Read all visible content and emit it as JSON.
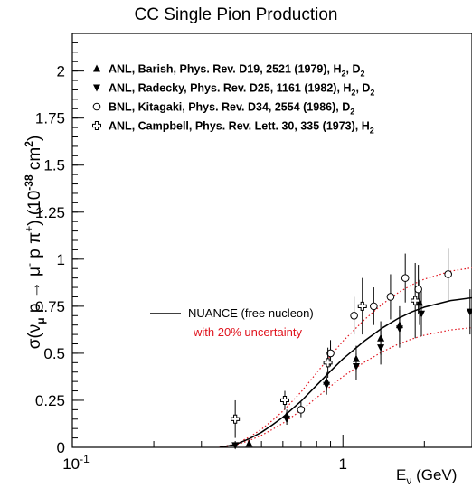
{
  "chart_data": {
    "type": "scatter",
    "title": "CC Single Pion Production",
    "xlabel": {
      "main": "E",
      "sub": "ν",
      "unit": " (GeV)"
    },
    "ylabel": {
      "pre": "σ(ν",
      "nusub": "μ",
      "mid": " p  ",
      "arrow": "→",
      "post": "  μ",
      "musup": "-",
      "post2": " p π",
      "pisup": "+",
      "post3": ") (10",
      "expsup": "-38",
      "unit": " cm",
      "unitsup": "2",
      "close": ")"
    },
    "x_scale": "log",
    "xlim": [
      0.1,
      3.0
    ],
    "ylim": [
      0,
      2.2
    ],
    "x_ticks": [
      {
        "value": 0.1,
        "base": "10",
        "exp": "-1"
      },
      {
        "value": 1,
        "label": "1"
      }
    ],
    "y_ticks": [
      {
        "value": 0,
        "label": "0"
      },
      {
        "value": 0.25,
        "label": "0.25"
      },
      {
        "value": 0.5,
        "label": "0.5"
      },
      {
        "value": 0.75,
        "label": "0.75"
      },
      {
        "value": 1,
        "label": "1"
      },
      {
        "value": 1.25,
        "label": "1.25"
      },
      {
        "value": 1.5,
        "label": "1.5"
      },
      {
        "value": 1.75,
        "label": "1.75"
      },
      {
        "value": 2,
        "label": "2"
      }
    ],
    "series": [
      {
        "name": "ANL, Barish, Phys. Rev. D19, 2521 (1979), H",
        "sub1": "2",
        "sep": ", D",
        "sub2": "2",
        "marker": "triangle-up",
        "points": [
          {
            "x": 0.45,
            "y": 0.02,
            "err": 0.01
          },
          {
            "x": 0.62,
            "y": 0.17,
            "err": 0.03
          },
          {
            "x": 0.87,
            "y": 0.35,
            "err": 0.05
          },
          {
            "x": 1.12,
            "y": 0.47,
            "err": 0.07
          },
          {
            "x": 1.38,
            "y": 0.58,
            "err": 0.09
          },
          {
            "x": 1.62,
            "y": 0.65,
            "err": 0.1
          },
          {
            "x": 1.92,
            "y": 0.77,
            "err": 0.12
          }
        ]
      },
      {
        "name": "ANL, Radecky, Phys. Rev. D25, 1161 (1982), H",
        "sub1": "2",
        "sep": ", D",
        "sub2": "2",
        "marker": "triangle-down",
        "points": [
          {
            "x": 0.4,
            "y": 0.01,
            "err": 0.01
          },
          {
            "x": 0.62,
            "y": 0.15,
            "err": 0.03
          },
          {
            "x": 0.87,
            "y": 0.33,
            "err": 0.05
          },
          {
            "x": 1.12,
            "y": 0.43,
            "err": 0.07
          },
          {
            "x": 1.38,
            "y": 0.53,
            "err": 0.09
          },
          {
            "x": 1.62,
            "y": 0.63,
            "err": 0.1
          },
          {
            "x": 1.95,
            "y": 0.71,
            "err": 0.12
          },
          {
            "x": 2.95,
            "y": 0.72,
            "err": 0.12
          }
        ]
      },
      {
        "name": "BNL, Kitagaki, Phys. Rev. D34, 2554 (1986), D",
        "sub1": "2",
        "marker": "circle-open",
        "points": [
          {
            "x": 0.7,
            "y": 0.2,
            "err": 0.04
          },
          {
            "x": 0.9,
            "y": 0.5,
            "err": 0.07
          },
          {
            "x": 1.1,
            "y": 0.7,
            "err": 0.1
          },
          {
            "x": 1.3,
            "y": 0.75,
            "err": 0.1
          },
          {
            "x": 1.5,
            "y": 0.8,
            "err": 0.12
          },
          {
            "x": 1.7,
            "y": 0.9,
            "err": 0.13
          },
          {
            "x": 1.9,
            "y": 0.84,
            "err": 0.13
          },
          {
            "x": 2.45,
            "y": 0.92,
            "err": 0.14
          }
        ]
      },
      {
        "name": "ANL, Campbell, Phys. Rev. Lett. 30, 335 (1973), H",
        "sub1": "2",
        "marker": "cross-open",
        "points": [
          {
            "x": 0.4,
            "y": 0.15,
            "err": 0.1
          },
          {
            "x": 0.61,
            "y": 0.25,
            "err": 0.05
          },
          {
            "x": 0.88,
            "y": 0.45,
            "err": 0.08
          },
          {
            "x": 1.18,
            "y": 0.75,
            "err": 0.15
          },
          {
            "x": 1.85,
            "y": 0.78,
            "err": 0.2
          }
        ]
      }
    ],
    "model": {
      "label": "NUANCE (free nucleon)",
      "band_label": "with 20% uncertainty",
      "band_fraction": 0.2,
      "curve": [
        {
          "x": 0.35,
          "y": 0.0
        },
        {
          "x": 0.4,
          "y": 0.015
        },
        {
          "x": 0.45,
          "y": 0.045
        },
        {
          "x": 0.5,
          "y": 0.08
        },
        {
          "x": 0.55,
          "y": 0.12
        },
        {
          "x": 0.6,
          "y": 0.16
        },
        {
          "x": 0.7,
          "y": 0.245
        },
        {
          "x": 0.8,
          "y": 0.33
        },
        {
          "x": 0.9,
          "y": 0.405
        },
        {
          "x": 1.0,
          "y": 0.47
        },
        {
          "x": 1.2,
          "y": 0.565
        },
        {
          "x": 1.4,
          "y": 0.635
        },
        {
          "x": 1.6,
          "y": 0.685
        },
        {
          "x": 1.8,
          "y": 0.72
        },
        {
          "x": 2.0,
          "y": 0.745
        },
        {
          "x": 2.5,
          "y": 0.78
        },
        {
          "x": 3.0,
          "y": 0.795
        }
      ]
    },
    "colors": {
      "data": "#000000",
      "model": "#000000",
      "band": "#e0141e"
    }
  }
}
